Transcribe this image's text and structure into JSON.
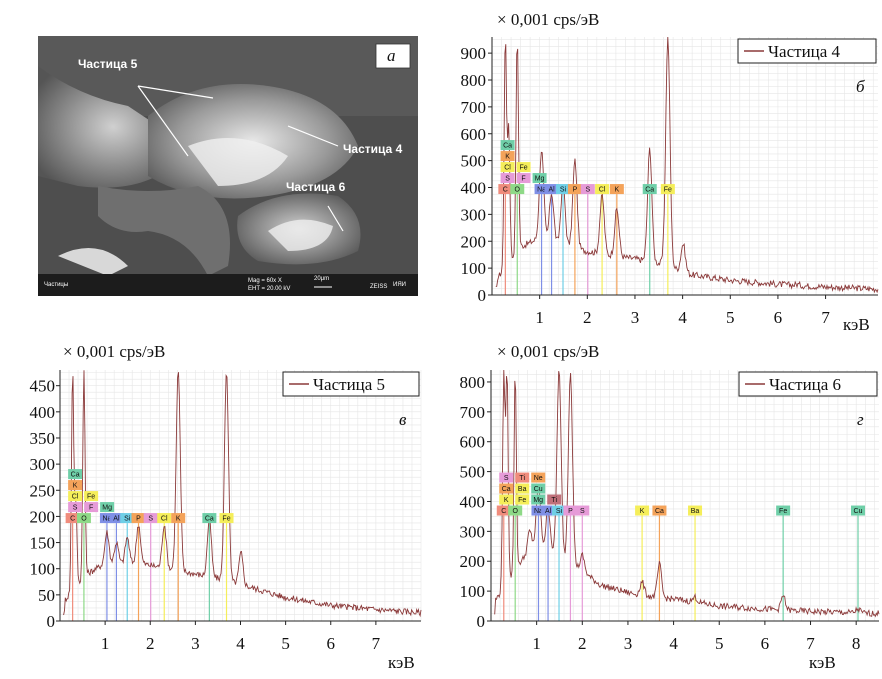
{
  "sem_image": {
    "letter": "а",
    "labels": [
      "Частица 5",
      "Частица 4",
      "Частица 6"
    ],
    "footer_left": "Частицы",
    "footer_mag": "Mag =    60x X",
    "footer_eht": "EHT = 20.00 kV",
    "footer_scale": "20μm",
    "footer_logo": "ZEISS",
    "footer_inst": "ИЯИ"
  },
  "chart_data": [
    {
      "type": "line",
      "panel": "б",
      "unit_label": "× 0,001 cps/эВ",
      "xlabel": "кэВ",
      "series": [
        {
          "name": "Частица 4",
          "color": "#8b3a3a"
        }
      ],
      "xlim": [
        0,
        8.1
      ],
      "ylim": [
        0,
        960
      ],
      "xticks": [
        1,
        2,
        3,
        4,
        5,
        6,
        7
      ],
      "yticks": [
        0,
        100,
        200,
        300,
        400,
        500,
        600,
        700,
        800,
        900
      ],
      "peaks": [
        [
          0.28,
          960
        ],
        [
          0.35,
          620
        ],
        [
          0.53,
          960
        ],
        [
          1.04,
          540
        ],
        [
          1.25,
          380
        ],
        [
          1.49,
          410
        ],
        [
          1.74,
          500
        ],
        [
          2.31,
          370
        ],
        [
          2.62,
          320
        ],
        [
          3.31,
          545
        ],
        [
          3.69,
          960
        ],
        [
          4.01,
          190
        ],
        [
          6.4,
          40
        ]
      ],
      "background": [
        [
          0.1,
          60
        ],
        [
          0.6,
          180
        ],
        [
          1.0,
          210
        ],
        [
          1.8,
          170
        ],
        [
          2.4,
          150
        ],
        [
          3.0,
          135
        ],
        [
          3.6,
          115
        ],
        [
          4.2,
          75
        ],
        [
          5.0,
          55
        ],
        [
          6.0,
          40
        ],
        [
          7.0,
          30
        ],
        [
          8.1,
          22
        ]
      ],
      "tag_rows": [
        [
          {
            "t": "Ca",
            "c": "#6fcfa8"
          }
        ],
        [
          {
            "t": "K",
            "c": "#f4a35a"
          }
        ],
        [
          {
            "t": "Cl",
            "c": "#f5ee5a"
          },
          {
            "t": "Fe",
            "c": "#f5ee5a"
          }
        ],
        [
          {
            "t": "S",
            "c": "#e69bd8"
          },
          {
            "t": "F",
            "c": "#e69bd8"
          },
          {
            "t": "Mg",
            "c": "#6fcfa8"
          }
        ],
        [
          {
            "t": "C",
            "c": "#f08c7c"
          },
          {
            "t": "O",
            "c": "#8ed987"
          },
          {
            "t": "Na",
            "c": "#7f8fe6"
          },
          {
            "t": "Al",
            "c": "#7f8fe6"
          },
          {
            "t": "Si",
            "c": "#6fcfe6"
          },
          {
            "t": "P",
            "c": "#f4a35a"
          },
          {
            "t": "S",
            "c": "#e69bd8"
          },
          {
            "t": "Cl",
            "c": "#f5ee5a"
          },
          {
            "t": "K",
            "c": "#f4a35a"
          },
          {
            "t": "Ca",
            "c": "#6fcfa8"
          },
          {
            "t": "Fe",
            "c": "#f5ee5a"
          }
        ]
      ]
    },
    {
      "type": "line",
      "panel": "в",
      "unit_label": "× 0,001 cps/эВ",
      "xlabel": "кэВ",
      "series": [
        {
          "name": "Частица 5",
          "color": "#8b3a3a"
        }
      ],
      "xlim": [
        0,
        8.0
      ],
      "ylim": [
        0,
        480
      ],
      "xticks": [
        1,
        2,
        3,
        4,
        5,
        6,
        7
      ],
      "yticks": [
        0,
        50,
        100,
        150,
        200,
        250,
        300,
        350,
        400,
        450
      ],
      "peaks": [
        [
          0.28,
          480
        ],
        [
          0.35,
          230
        ],
        [
          0.53,
          480
        ],
        [
          1.04,
          170
        ],
        [
          1.25,
          150
        ],
        [
          1.49,
          160
        ],
        [
          1.74,
          185
        ],
        [
          2.31,
          185
        ],
        [
          2.62,
          480
        ],
        [
          3.31,
          195
        ],
        [
          3.69,
          480
        ],
        [
          4.01,
          130
        ],
        [
          6.4,
          25
        ]
      ],
      "background": [
        [
          0.1,
          40
        ],
        [
          0.6,
          90
        ],
        [
          1.0,
          110
        ],
        [
          1.8,
          110
        ],
        [
          2.4,
          100
        ],
        [
          3.0,
          90
        ],
        [
          3.6,
          80
        ],
        [
          4.2,
          65
        ],
        [
          5.0,
          45
        ],
        [
          6.0,
          30
        ],
        [
          7.0,
          22
        ],
        [
          8.0,
          16
        ]
      ],
      "tag_rows": [
        [
          {
            "t": "Ca",
            "c": "#6fcfa8"
          }
        ],
        [
          {
            "t": "K",
            "c": "#f4a35a"
          }
        ],
        [
          {
            "t": "Cl",
            "c": "#f5ee5a"
          },
          {
            "t": "Fe",
            "c": "#f5ee5a"
          }
        ],
        [
          {
            "t": "S",
            "c": "#e69bd8"
          },
          {
            "t": "F",
            "c": "#e69bd8"
          },
          {
            "t": "Mg",
            "c": "#6fcfa8"
          }
        ],
        [
          {
            "t": "C",
            "c": "#f08c7c"
          },
          {
            "t": "O",
            "c": "#8ed987"
          },
          {
            "t": "Na",
            "c": "#7f8fe6"
          },
          {
            "t": "Al",
            "c": "#7f8fe6"
          },
          {
            "t": "Si",
            "c": "#6fcfe6"
          },
          {
            "t": "P",
            "c": "#f4a35a"
          },
          {
            "t": "S",
            "c": "#e69bd8"
          },
          {
            "t": "Cl",
            "c": "#f5ee5a"
          },
          {
            "t": "K",
            "c": "#f4a35a"
          },
          {
            "t": "Ca",
            "c": "#6fcfa8"
          },
          {
            "t": "Fe",
            "c": "#f5ee5a"
          }
        ]
      ]
    },
    {
      "type": "line",
      "panel": "г",
      "unit_label": "× 0,001 cps/эВ",
      "xlabel": "кэВ",
      "series": [
        {
          "name": "Частица 6",
          "color": "#8b3a3a"
        }
      ],
      "xlim": [
        0,
        8.5
      ],
      "ylim": [
        0,
        840
      ],
      "xticks": [
        1,
        2,
        3,
        4,
        5,
        6,
        7,
        8
      ],
      "yticks": [
        0,
        100,
        200,
        300,
        400,
        500,
        600,
        700,
        800
      ],
      "peaks": [
        [
          0.28,
          840
        ],
        [
          0.35,
          840
        ],
        [
          0.53,
          840
        ],
        [
          0.85,
          300
        ],
        [
          1.04,
          450
        ],
        [
          1.25,
          380
        ],
        [
          1.49,
          840
        ],
        [
          1.74,
          840
        ],
        [
          2.0,
          220
        ],
        [
          3.31,
          130
        ],
        [
          3.69,
          190
        ],
        [
          4.47,
          80
        ],
        [
          6.4,
          85
        ],
        [
          8.04,
          40
        ]
      ],
      "background": [
        [
          0.1,
          70
        ],
        [
          0.6,
          190
        ],
        [
          1.0,
          260
        ],
        [
          1.8,
          190
        ],
        [
          2.4,
          120
        ],
        [
          3.0,
          95
        ],
        [
          3.6,
          80
        ],
        [
          4.2,
          70
        ],
        [
          5.0,
          50
        ],
        [
          6.0,
          40
        ],
        [
          7.0,
          32
        ],
        [
          8.5,
          25
        ]
      ],
      "tag_rows": [
        [
          {
            "t": "S",
            "c": "#e69bd8"
          },
          {
            "t": "Ti",
            "c": "#f08c7c"
          },
          {
            "t": "Ne",
            "c": "#f4a35a"
          }
        ],
        [
          {
            "t": "Ca",
            "c": "#f4a35a"
          },
          {
            "t": "Ba",
            "c": "#f5ee5a"
          },
          {
            "t": "Cu",
            "c": "#6fcfa8"
          }
        ],
        [
          {
            "t": "K",
            "c": "#f5ee5a"
          },
          {
            "t": "Fe",
            "c": "#f5ee5a"
          },
          {
            "t": "Mg",
            "c": "#6fcfa8"
          },
          {
            "t": "Ti",
            "c": "#c0707a"
          }
        ],
        [
          {
            "t": "C",
            "c": "#f08c7c"
          },
          {
            "t": "O",
            "c": "#8ed987"
          },
          {
            "t": "Na",
            "c": "#7f8fe6"
          },
          {
            "t": "Al",
            "c": "#7f8fe6"
          },
          {
            "t": "Si",
            "c": "#6fcfe6"
          },
          {
            "t": "P",
            "c": "#e69bd8"
          },
          {
            "t": "S",
            "c": "#e69bd8"
          },
          {
            "t": "K",
            "c": "#f5ee5a"
          },
          {
            "t": "Ca",
            "c": "#f4a35a"
          },
          {
            "t": "Ba",
            "c": "#f5ee5a"
          },
          {
            "t": "Fe",
            "c": "#6fcfa8"
          },
          {
            "t": "Cu",
            "c": "#6fcfa8"
          }
        ]
      ]
    }
  ]
}
